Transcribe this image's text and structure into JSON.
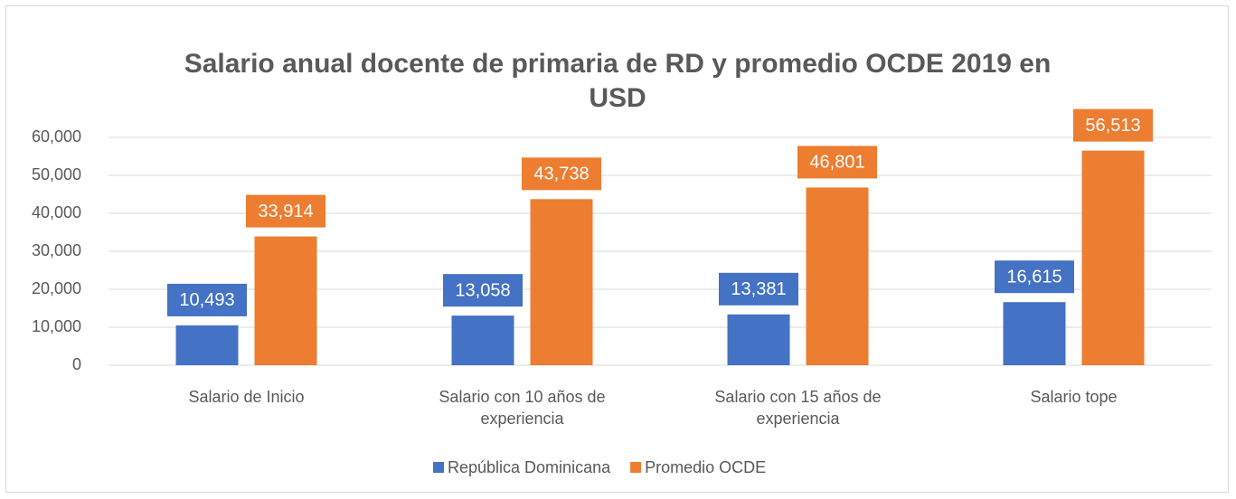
{
  "chart_data": {
    "type": "bar",
    "title": "Salario anual docente de primaria de RD y promedio OCDE 2019 en USD",
    "categories": [
      "Salario de Inicio",
      "Salario con 10 años de experiencia",
      "Salario con 15 años de experiencia",
      "Salario tope"
    ],
    "series": [
      {
        "name": "República Dominicana",
        "color": "#4472c4",
        "values": [
          10493,
          13058,
          13381,
          16615
        ],
        "value_labels": [
          "10,493",
          "13,058",
          "13,381",
          "16,615"
        ]
      },
      {
        "name": "Promedio OCDE",
        "color": "#ed7d31",
        "values": [
          33914,
          43738,
          46801,
          56513
        ],
        "value_labels": [
          "33,914",
          "43,738",
          "46,801",
          "56,513"
        ]
      }
    ],
    "ylim": [
      0,
      60000
    ],
    "yticks": [
      0,
      {
        "value": 10000,
        "label": "10,000"
      },
      {
        "value": 20000,
        "label": "20,000"
      },
      {
        "value": 30000,
        "label": "30,000"
      },
      {
        "value": 40000,
        "label": "40,000"
      },
      {
        "value": 50000,
        "label": "50,000"
      },
      {
        "value": 60000,
        "label": "60,000"
      }
    ],
    "grid": true,
    "legend": "bottom"
  }
}
